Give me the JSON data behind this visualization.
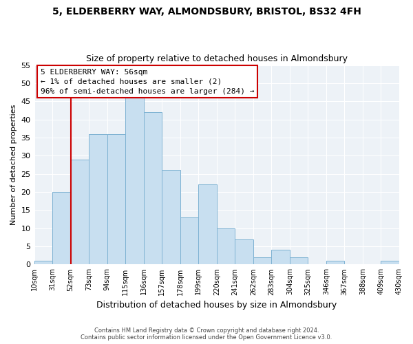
{
  "title": "5, ELDERBERRY WAY, ALMONDSBURY, BRISTOL, BS32 4FH",
  "subtitle": "Size of property relative to detached houses in Almondsbury",
  "xlabel": "Distribution of detached houses by size in Almondsbury",
  "ylabel": "Number of detached properties",
  "bin_labels": [
    "10sqm",
    "31sqm",
    "52sqm",
    "73sqm",
    "94sqm",
    "115sqm",
    "136sqm",
    "157sqm",
    "178sqm",
    "199sqm",
    "220sqm",
    "241sqm",
    "262sqm",
    "283sqm",
    "304sqm",
    "325sqm",
    "346sqm",
    "367sqm",
    "388sqm",
    "409sqm",
    "430sqm"
  ],
  "bar_values": [
    1,
    20,
    29,
    36,
    36,
    46,
    42,
    26,
    13,
    22,
    10,
    7,
    2,
    4,
    2,
    0,
    1,
    0,
    0,
    1
  ],
  "bar_color": "#c8dff0",
  "bar_edge_color": "#7fb3d3",
  "vline_x_index": 2,
  "vline_color": "#cc0000",
  "ylim": [
    0,
    55
  ],
  "yticks": [
    0,
    5,
    10,
    15,
    20,
    25,
    30,
    35,
    40,
    45,
    50,
    55
  ],
  "annotation_title": "5 ELDERBERRY WAY: 56sqm",
  "annotation_line1": "← 1% of detached houses are smaller (2)",
  "annotation_line2": "96% of semi-detached houses are larger (284) →",
  "annotation_box_color": "#ffffff",
  "annotation_box_edge": "#cc0000",
  "footer1": "Contains HM Land Registry data © Crown copyright and database right 2024.",
  "footer2": "Contains public sector information licensed under the Open Government Licence v3.0.",
  "bg_color": "#edf2f7",
  "grid_color": "#ffffff"
}
